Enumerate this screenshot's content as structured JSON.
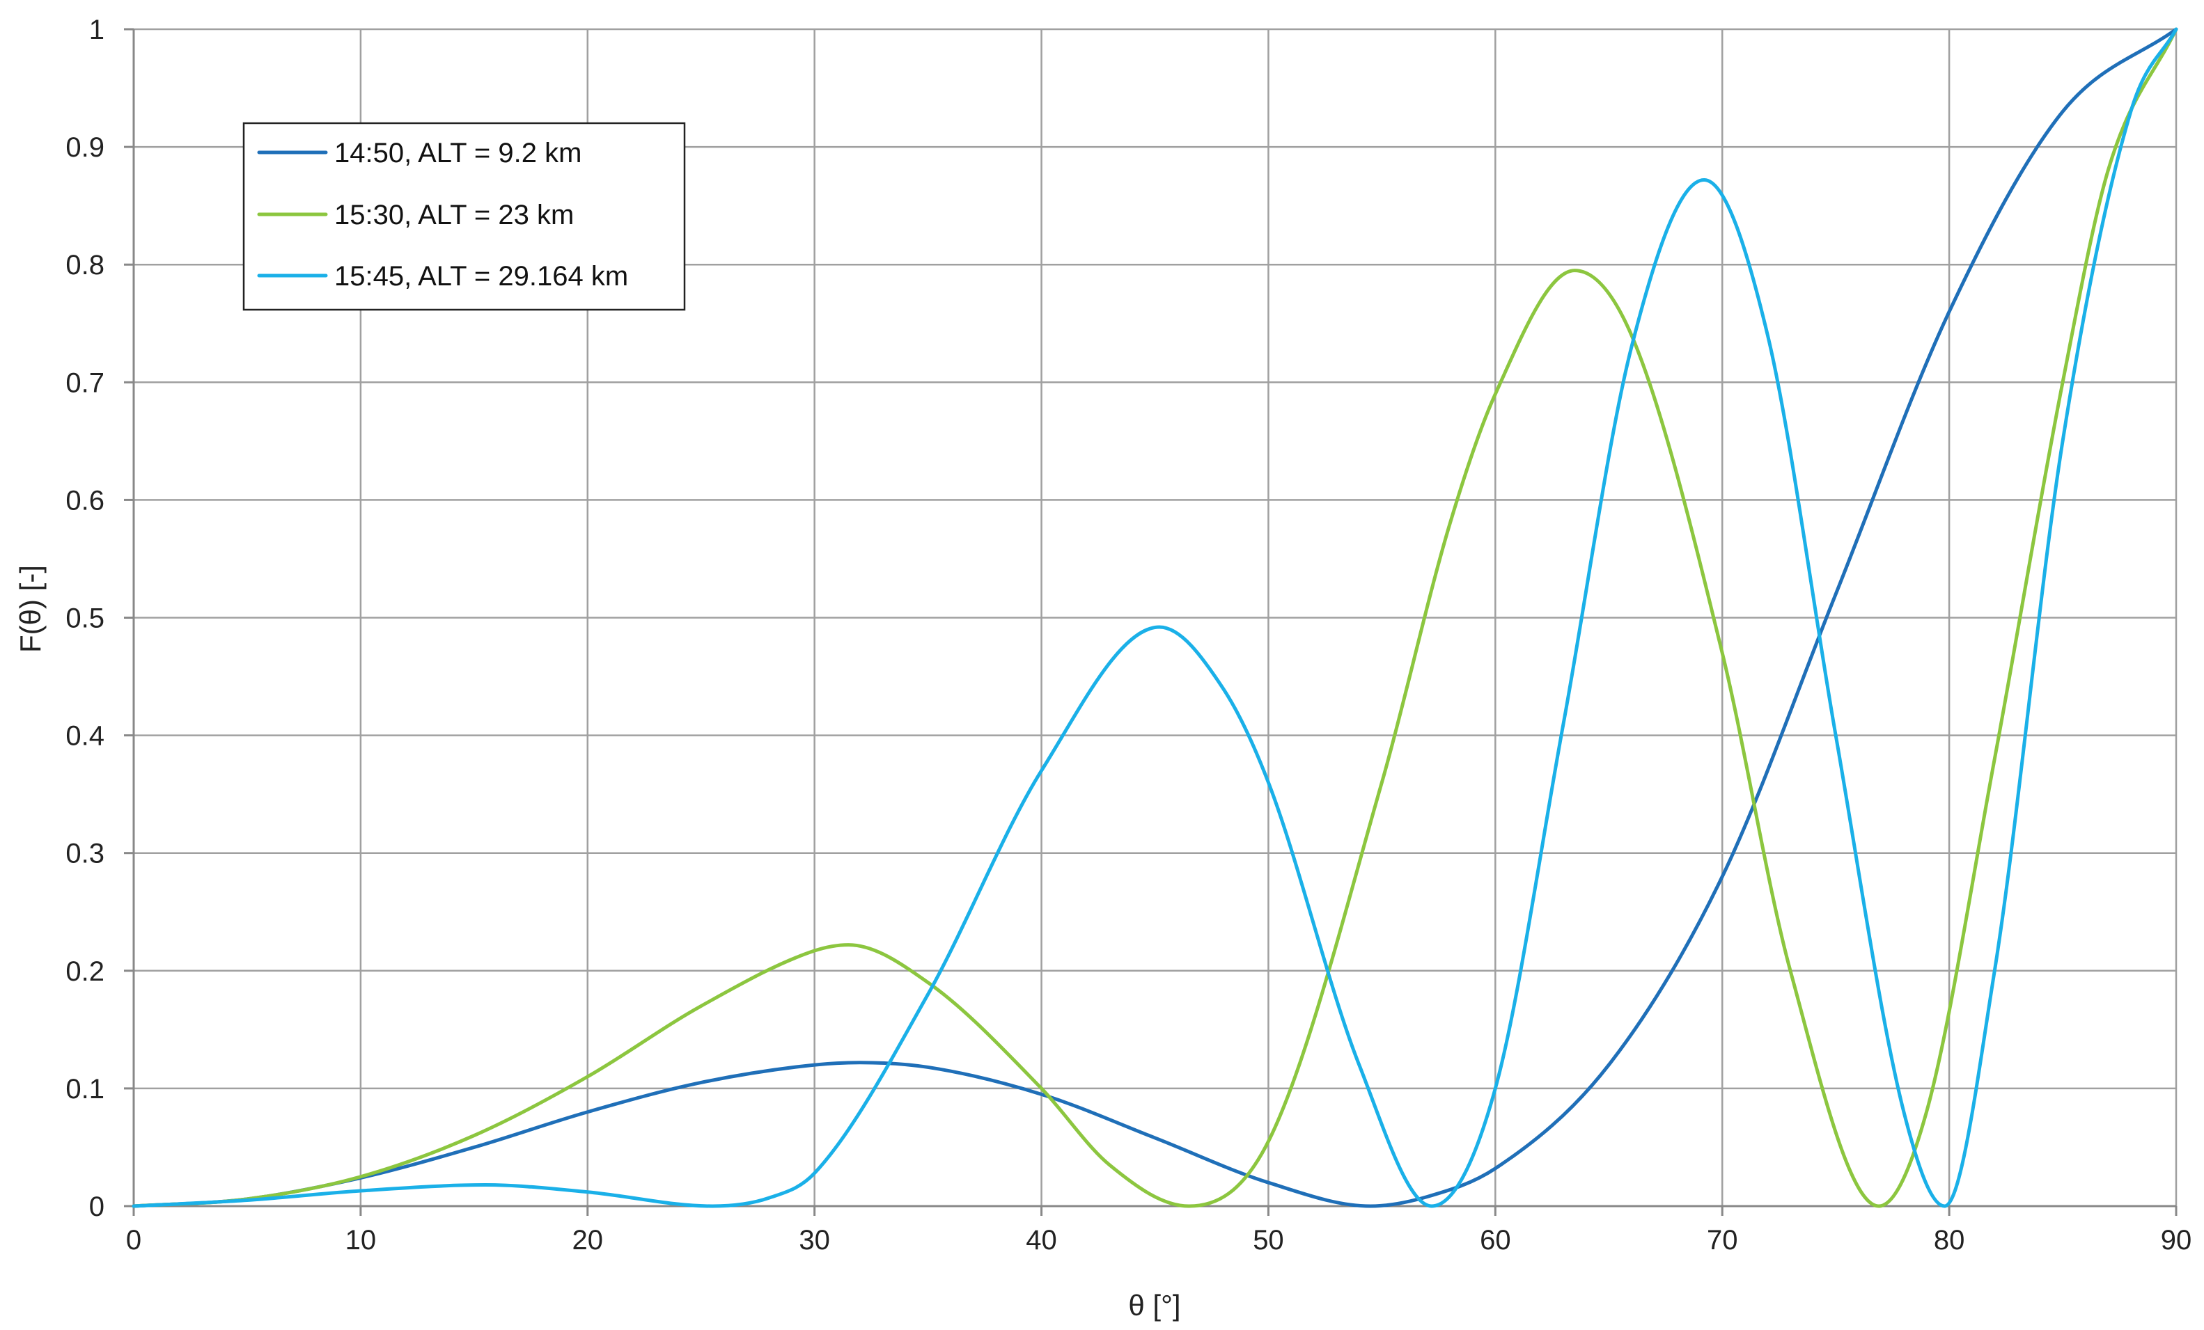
{
  "chart_data": {
    "type": "line",
    "title": "",
    "xlabel": "θ [°]",
    "ylabel": "F(θ) [-]",
    "xlim": [
      0,
      90
    ],
    "ylim": [
      0,
      1
    ],
    "x_ticks": [
      0,
      10,
      20,
      30,
      40,
      50,
      60,
      70,
      80,
      90
    ],
    "y_ticks": [
      0,
      0.1,
      0.2,
      0.3,
      0.4,
      0.5,
      0.6,
      0.7,
      0.8,
      0.9,
      1
    ],
    "x_tick_labels": [
      "0",
      "10",
      "20",
      "30",
      "40",
      "50",
      "60",
      "70",
      "80",
      "90"
    ],
    "y_tick_labels": [
      "0",
      "0.1",
      "0.2",
      "0.3",
      "0.4",
      "0.5",
      "0.6",
      "0.7",
      "0.8",
      "0.9",
      "1"
    ],
    "grid": true,
    "legend_position": "top-left",
    "series": [
      {
        "name": "14:50, ALT = 9.2 km",
        "color": "#1f6fb8",
        "x": [
          0,
          5,
          10,
          15,
          20,
          25,
          30,
          32,
          35,
          40,
          45,
          50,
          54.5,
          57,
          60,
          65,
          70,
          75,
          80,
          85,
          90
        ],
        "y": [
          0,
          0.006,
          0.024,
          0.05,
          0.08,
          0.105,
          0.12,
          0.122,
          0.118,
          0.095,
          0.058,
          0.02,
          0.0,
          0.008,
          0.032,
          0.12,
          0.28,
          0.52,
          0.76,
          0.93,
          1.0
        ]
      },
      {
        "name": "15:30, ALT = 23 km",
        "color": "#8cc63f",
        "x": [
          0,
          5,
          10,
          15,
          20,
          25,
          30,
          31.5,
          35,
          40,
          43,
          46.5,
          50,
          55,
          58,
          60,
          63.5,
          66,
          70,
          73,
          76.9,
          79,
          82,
          85,
          87,
          90
        ],
        "y": [
          0,
          0.006,
          0.025,
          0.06,
          0.11,
          0.17,
          0.217,
          0.222,
          0.19,
          0.1,
          0.035,
          0.0,
          0.055,
          0.36,
          0.58,
          0.69,
          0.795,
          0.74,
          0.47,
          0.2,
          0.0,
          0.08,
          0.38,
          0.7,
          0.88,
          1.0
        ]
      },
      {
        "name": "15:45, ALT = 29.164 km",
        "color": "#1ab0e8",
        "x": [
          0,
          5,
          10,
          15.5,
          20,
          25.5,
          28,
          30,
          35,
          40,
          45.2,
          48,
          50,
          54,
          57.2,
          60,
          63,
          66,
          69.2,
          72,
          75,
          78,
          79.8,
          82,
          85,
          88,
          90
        ],
        "y": [
          0,
          0.005,
          0.013,
          0.018,
          0.012,
          0.0,
          0.007,
          0.028,
          0.18,
          0.37,
          0.492,
          0.44,
          0.36,
          0.12,
          0.0,
          0.1,
          0.41,
          0.73,
          0.872,
          0.74,
          0.4,
          0.08,
          0.0,
          0.2,
          0.65,
          0.93,
          1.0
        ]
      }
    ]
  }
}
